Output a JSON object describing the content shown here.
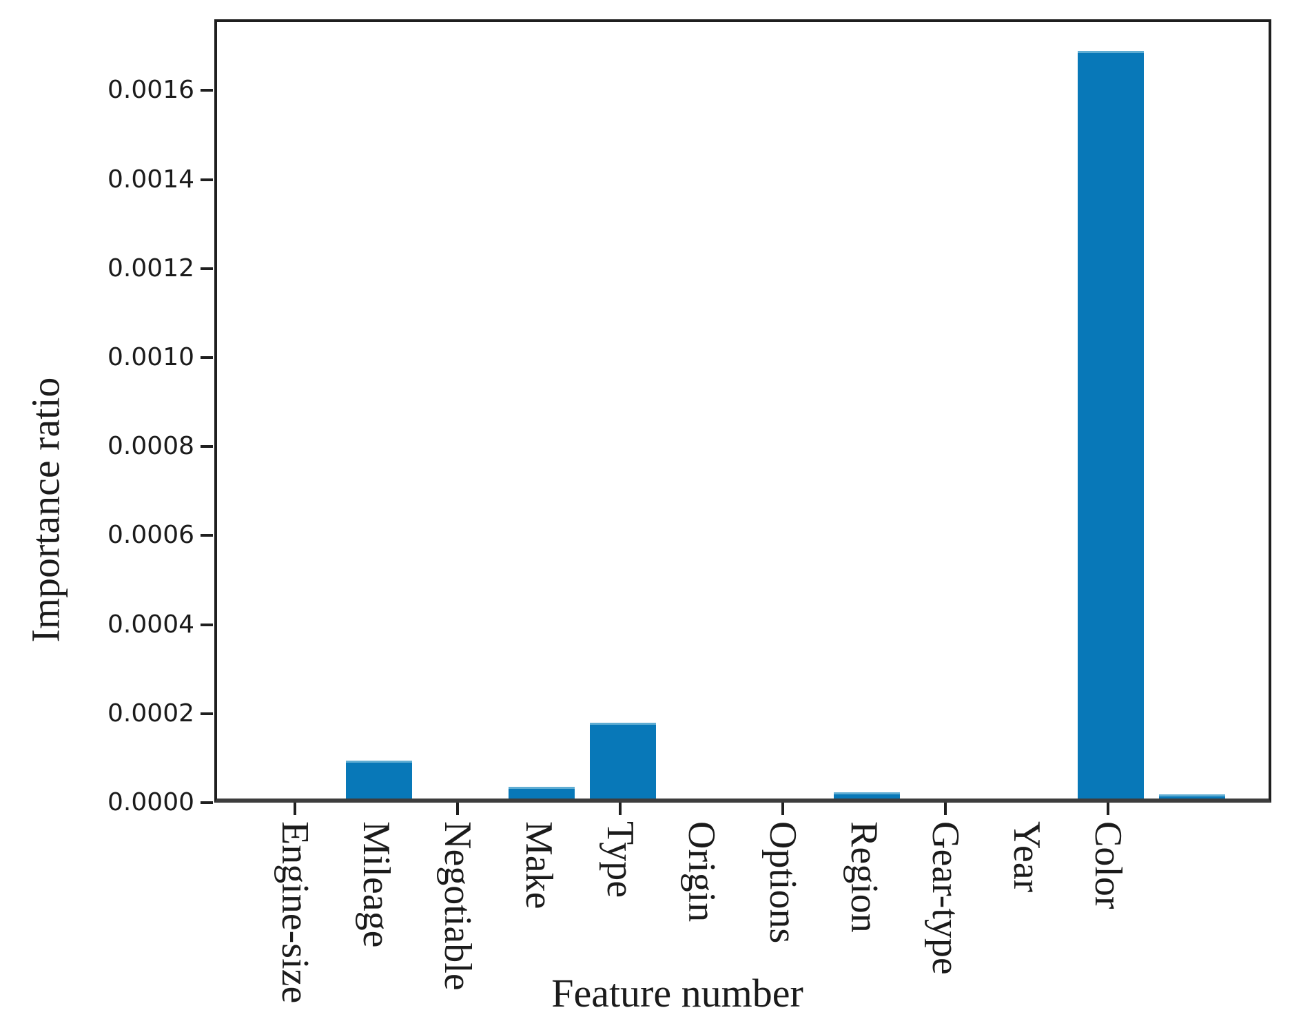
{
  "chart_data": {
    "type": "bar",
    "title": "",
    "xlabel": "Feature number",
    "ylabel": "Importance ratio",
    "categories": [
      "Engine-size",
      "Mileage",
      "Negotiable",
      "Make",
      "Type",
      "Origin",
      "Options",
      "Region",
      "Gear-type",
      "Year",
      "Color",
      ""
    ],
    "values": [
      0,
      8.5e-05,
      0,
      2.7e-05,
      0.00017,
      0,
      0,
      1.4e-05,
      0,
      0,
      0.00168,
      1e-05
    ],
    "ylim": [
      0,
      0.00176
    ],
    "ytick_labels": [
      "0.0000",
      "0.0002",
      "0.0004",
      "0.0006",
      "0.0008",
      "0.0010",
      "0.0012",
      "0.0014",
      "0.0016"
    ],
    "xticks_at_category_indices": [
      0,
      2,
      4,
      6,
      8,
      10
    ],
    "x_tick_label_rotation_deg": 90,
    "grid": "off",
    "legend": "none",
    "colors": {
      "bar": "#0878b8",
      "bar_top_highlight": "#5fadd3",
      "spine": "#1f1f1f",
      "bottom_spine": "#3d3d3d",
      "text": "#1b1b1b"
    }
  }
}
